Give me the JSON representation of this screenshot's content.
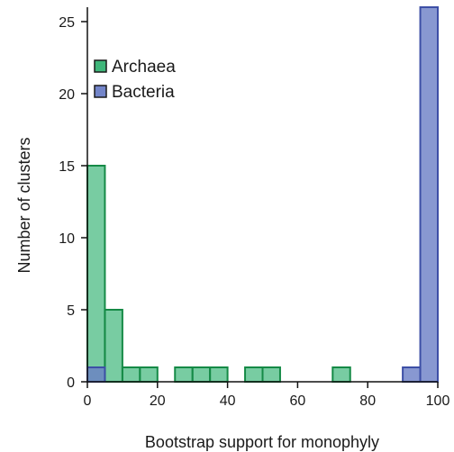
{
  "chart_data": {
    "type": "bar",
    "xlabel": "Bootstrap support for monophyly",
    "ylabel": "Number of clusters",
    "xlim": [
      0,
      100
    ],
    "ylim": [
      0,
      26
    ],
    "x_ticks": [
      "0",
      "20",
      "40",
      "60",
      "80",
      "100"
    ],
    "y_ticks": [
      "0",
      "5",
      "10",
      "15",
      "20",
      "25"
    ],
    "bin_width": 5,
    "bin_starts": [
      0,
      5,
      10,
      15,
      20,
      25,
      30,
      35,
      40,
      45,
      50,
      55,
      60,
      65,
      70,
      75,
      80,
      85,
      90,
      95
    ],
    "legend_position": "top-left",
    "series": [
      {
        "name": "Archaea",
        "color": "#3fb67a",
        "values": [
          15,
          5,
          1,
          1,
          0,
          1,
          1,
          1,
          0,
          1,
          1,
          0,
          0,
          0,
          1,
          0,
          0,
          0,
          0,
          0
        ]
      },
      {
        "name": "Bacteria",
        "color": "#7385c9",
        "values": [
          1,
          0,
          0,
          0,
          0,
          0,
          0,
          0,
          0,
          0,
          0,
          0,
          0,
          0,
          0,
          0,
          0,
          0,
          1,
          26
        ]
      }
    ]
  }
}
